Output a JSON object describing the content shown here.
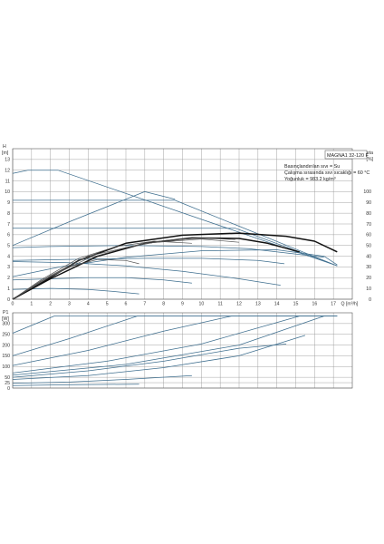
{
  "legend": {
    "pump_model": "MAGNA1 32-120 F",
    "lines": [
      "Basınçlandırılan sıvı = Su",
      "Çalışma sırasında sıvı sıcaklığı = 60 °C",
      "Yoğunluk = 983.2 kg/m³"
    ]
  },
  "chart_data": [
    {
      "type": "line",
      "id": "head_curve",
      "xlabel": "Q [m³/h]",
      "ylabel": "H [m]",
      "y2label": "eta [%]",
      "xlim": [
        0,
        18
      ],
      "ylim": [
        0,
        14
      ],
      "y2lim": [
        0,
        140
      ],
      "x_ticks": [
        0,
        1,
        2,
        3,
        4,
        5,
        6,
        7,
        8,
        9,
        10,
        11,
        12,
        13,
        14,
        15,
        16,
        17
      ],
      "y_ticks": [
        0,
        1,
        2,
        3,
        4,
        5,
        6,
        7,
        8,
        9,
        10,
        11,
        12,
        13
      ],
      "y2_ticks": [
        0,
        10,
        20,
        30,
        40,
        50,
        60,
        70,
        80,
        90,
        100
      ],
      "grid": true,
      "series": [
        {
          "group": "head",
          "style": "blue",
          "points": [
            [
              0,
              11.7
            ],
            [
              0.8,
              12
            ],
            [
              2.4,
              12
            ],
            [
              17.2,
              3.1
            ]
          ]
        },
        {
          "group": "head",
          "style": "blue",
          "points": [
            [
              0,
              9.2
            ],
            [
              8.6,
              9.2
            ],
            [
              17.2,
              3.1
            ]
          ]
        },
        {
          "group": "head",
          "style": "blue",
          "points": [
            [
              0,
              6.6
            ],
            [
              11.8,
              6.6
            ],
            [
              17.2,
              3.1
            ]
          ]
        },
        {
          "group": "head",
          "style": "blue",
          "points": [
            [
              0,
              4.8
            ],
            [
              2,
              4.9
            ],
            [
              6,
              5
            ],
            [
              10,
              4.9
            ],
            [
              12.5,
              4.7
            ],
            [
              16.5,
              3.9
            ]
          ]
        },
        {
          "group": "head",
          "style": "blue",
          "points": [
            [
              0,
              3.6
            ],
            [
              3,
              3.7
            ],
            [
              7,
              3.8
            ],
            [
              10,
              3.8
            ],
            [
              13,
              3.6
            ],
            [
              14.4,
              3.3
            ]
          ]
        },
        {
          "group": "head",
          "style": "blue",
          "points": [
            [
              0,
              3.5
            ],
            [
              3,
              3.4
            ],
            [
              6,
              3.1
            ],
            [
              9,
              2.6
            ],
            [
              12,
              1.9
            ],
            [
              14.2,
              1.3
            ]
          ]
        },
        {
          "group": "head",
          "style": "blue",
          "points": [
            [
              0,
              1.8
            ],
            [
              2,
              1.9
            ],
            [
              4,
              2.0
            ],
            [
              6,
              2.0
            ],
            [
              8,
              1.8
            ],
            [
              9.5,
              1.5
            ]
          ]
        },
        {
          "group": "head",
          "style": "blue",
          "points": [
            [
              0,
              0.9
            ],
            [
              2,
              1.0
            ],
            [
              4,
              0.9
            ],
            [
              5.5,
              0.7
            ],
            [
              6.7,
              0.5
            ]
          ]
        },
        {
          "group": "head",
          "style": "blue",
          "points": [
            [
              0,
              5.0
            ],
            [
              3,
              7.2
            ],
            [
              7,
              10.0
            ],
            [
              8.6,
              9.3
            ]
          ]
        },
        {
          "group": "head",
          "style": "blue",
          "points": [
            [
              0,
              2.1
            ],
            [
              2.5,
              3.0
            ],
            [
              6,
              3.9
            ],
            [
              10,
              4.5
            ],
            [
              14,
              4.6
            ],
            [
              16.5,
              4.0
            ],
            [
              17.2,
              3.2
            ]
          ]
        },
        {
          "group": "eta",
          "style": "black",
          "points": [
            [
              0,
              0
            ],
            [
              1.5,
              15
            ],
            [
              3.5,
              36
            ],
            [
              6,
              52
            ],
            [
              9,
              59.5
            ],
            [
              12,
              61.5
            ],
            [
              14.5,
              58.5
            ],
            [
              16,
              54
            ],
            [
              17.2,
              44
            ]
          ]
        },
        {
          "group": "eta",
          "style": "black",
          "points": [
            [
              0,
              0
            ],
            [
              2,
              19
            ],
            [
              4.5,
              40
            ],
            [
              7,
              52
            ],
            [
              9.5,
              57
            ],
            [
              12,
              56.5
            ],
            [
              13.5,
              52
            ],
            [
              15.2,
              44
            ]
          ]
        },
        {
          "group": "eta",
          "style": "grey",
          "points": [
            [
              0,
              0
            ],
            [
              2,
              21
            ],
            [
              4,
              38
            ],
            [
              6,
              48
            ],
            [
              8,
              54.5
            ],
            [
              10,
              57
            ],
            [
              11.8,
              55.5
            ]
          ]
        },
        {
          "group": "eta",
          "style": "grey",
          "points": [
            [
              0,
              0
            ],
            [
              1.5,
              18
            ],
            [
              3.5,
              38
            ],
            [
              5.5,
              49
            ],
            [
              7.5,
              54
            ],
            [
              9.5,
              52
            ]
          ]
        },
        {
          "group": "eta",
          "style": "grey",
          "points": [
            [
              0,
              0
            ],
            [
              1.5,
              17
            ],
            [
              3,
              30
            ],
            [
              4.5,
              37
            ],
            [
              6,
              36
            ],
            [
              6.7,
              33
            ]
          ]
        },
        {
          "group": "eta",
          "style": "grey",
          "points": [
            [
              0,
              0
            ],
            [
              2,
              22
            ],
            [
              4,
              40
            ],
            [
              7,
              52
            ],
            [
              10,
              56
            ],
            [
              12,
              53
            ]
          ]
        }
      ]
    },
    {
      "type": "line",
      "id": "power_curve",
      "xlabel": "",
      "ylabel": "P1 [W]",
      "xlim": [
        0,
        18
      ],
      "ylim": [
        0,
        350
      ],
      "y_ticks": [
        0,
        25,
        50,
        100,
        150,
        200,
        250,
        300
      ],
      "y_tick_labels": [
        "0",
        "25",
        "50",
        "100",
        "150",
        "200",
        "250",
        "300"
      ],
      "grid": true,
      "series": [
        {
          "style": "blue",
          "points": [
            [
              0,
              255
            ],
            [
              2.2,
              335
            ],
            [
              17.2,
              335
            ]
          ]
        },
        {
          "style": "blue",
          "points": [
            [
              0,
              150
            ],
            [
              3,
              230
            ],
            [
              6.6,
              335
            ],
            [
              17.2,
              335
            ]
          ]
        },
        {
          "style": "blue",
          "points": [
            [
              0,
              105
            ],
            [
              4,
              175
            ],
            [
              8,
              265
            ],
            [
              11.6,
              335
            ],
            [
              17.2,
              335
            ]
          ]
        },
        {
          "style": "blue",
          "points": [
            [
              0,
              70
            ],
            [
              5,
              125
            ],
            [
              10,
              205
            ],
            [
              15.2,
              335
            ],
            [
              17.2,
              335
            ]
          ]
        },
        {
          "style": "blue",
          "points": [
            [
              0,
              50
            ],
            [
              4,
              80
            ],
            [
              8,
              125
            ],
            [
              12,
              185
            ],
            [
              14.5,
              205
            ]
          ]
        },
        {
          "style": "blue",
          "points": [
            [
              0,
              40
            ],
            [
              4,
              58
            ],
            [
              8,
              95
            ],
            [
              12,
              150
            ],
            [
              15.5,
              245
            ]
          ]
        },
        {
          "style": "blue",
          "points": [
            [
              0,
              22
            ],
            [
              3,
              28
            ],
            [
              6,
              40
            ],
            [
              9.5,
              58
            ]
          ]
        },
        {
          "style": "blue",
          "points": [
            [
              0,
              12
            ],
            [
              3,
              15
            ],
            [
              6.7,
              18
            ]
          ]
        },
        {
          "style": "blue",
          "points": [
            [
              0,
              60
            ],
            [
              6,
              110
            ],
            [
              12,
              200
            ],
            [
              16.5,
              335
            ]
          ]
        }
      ]
    }
  ]
}
